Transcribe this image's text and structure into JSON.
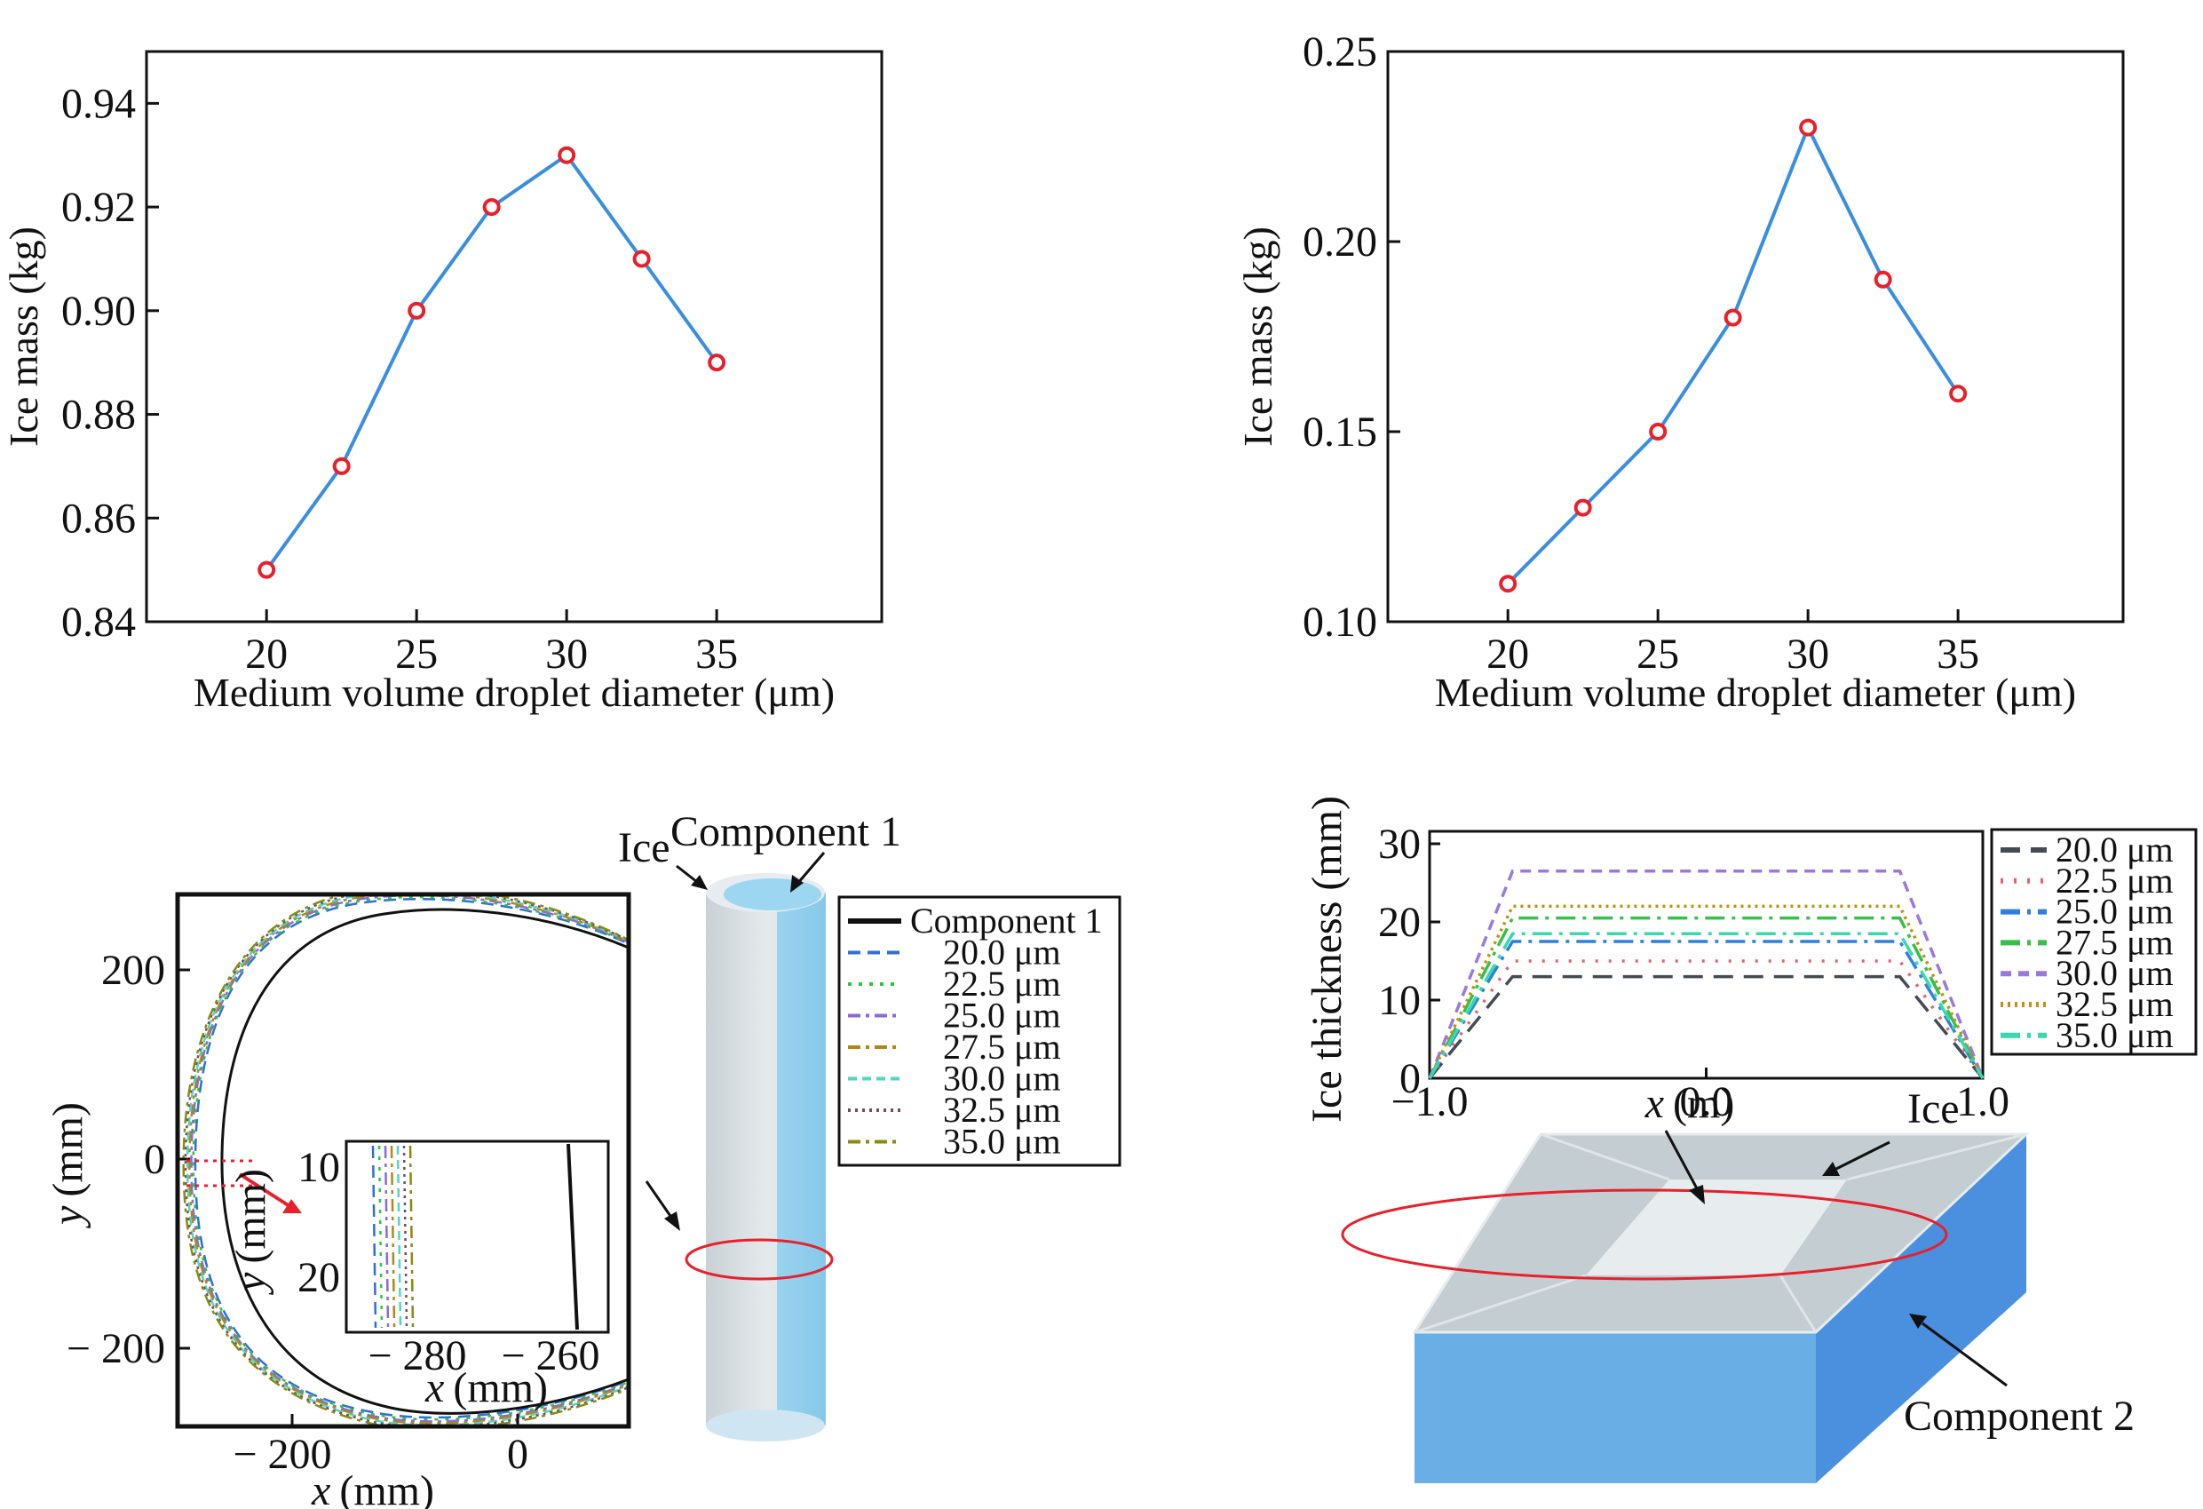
{
  "chart_data": [
    {
      "id": "top-left",
      "type": "line",
      "xlabel": "Medium volume droplet diameter (μm)",
      "ylabel": "Ice mass (kg)",
      "xlim": [
        16,
        40.5
      ],
      "ylim": [
        0.84,
        0.95
      ],
      "xticks": [
        20,
        25,
        30,
        35
      ],
      "yticks": [
        0.84,
        0.86,
        0.88,
        0.9,
        0.92,
        0.94
      ],
      "ytick_labels": [
        "0.84",
        "0.86",
        "0.88",
        "0.90",
        "0.92",
        "0.94"
      ],
      "series": [
        {
          "x": [
            20,
            22.5,
            25,
            27.5,
            30,
            32.5,
            35
          ],
          "values": [
            0.85,
            0.87,
            0.9,
            0.92,
            0.93,
            0.91,
            0.89
          ]
        }
      ],
      "line_color": "#3a8ee0",
      "marker_color": "#e8202a",
      "grid": false
    },
    {
      "id": "top-right",
      "type": "line",
      "xlabel": "Medium volume droplet diameter (μm)",
      "ylabel": "Ice mass (kg)",
      "xlim": [
        16,
        40.5
      ],
      "ylim": [
        0.1,
        0.25
      ],
      "xticks": [
        20,
        25,
        30,
        35
      ],
      "yticks": [
        0.1,
        0.15,
        0.2,
        0.25
      ],
      "ytick_labels": [
        "0.10",
        "0.15",
        "0.20",
        "0.25"
      ],
      "series": [
        {
          "x": [
            20,
            22.5,
            25,
            27.5,
            30,
            32.5,
            35
          ],
          "values": [
            0.11,
            0.13,
            0.15,
            0.18,
            0.23,
            0.19,
            0.16
          ]
        }
      ],
      "line_color": "#3a8ee0",
      "marker_color": "#e8202a",
      "grid": false
    },
    {
      "id": "bottom-left",
      "type": "line",
      "xlabel": "x (mm)",
      "ylabel": "y (mm)",
      "xlabel_var": "x",
      "xlabel_unit": "(mm)",
      "ylabel_var": "y",
      "ylabel_unit": "(mm)",
      "xticks": [
        -200,
        0
      ],
      "xtick_labels": [
        "− 200",
        "0"
      ],
      "yticks": [
        200,
        0,
        -200
      ],
      "ytick_labels": [
        "200",
        "0",
        "− 200"
      ],
      "legend": [
        "Component 1",
        "20.0 μm",
        "22.5 μm",
        "25.0 μm",
        "27.5 μm",
        "30.0 μm",
        "32.5 μm",
        "35.0 μm"
      ],
      "legend_colors": [
        "#111111",
        "#2f6fd6",
        "#29c93a",
        "#8a6ad8",
        "#b08a10",
        "#4fd6c8",
        "#7a4a5a",
        "#8a8a10"
      ],
      "legend_dashes": [
        "",
        "14 8",
        "4 8",
        "14 6 4 6",
        "14 6 4 6",
        "10 6",
        "3 5",
        "14 6 4 6"
      ],
      "inset": {
        "xticks": [
          "− 280",
          "− 260"
        ],
        "yticks": [
          "10",
          "20"
        ],
        "xlabel_var": "x",
        "xlabel_unit": "(mm)",
        "ylabel_var": "y",
        "ylabel_unit": "(mm)"
      },
      "illustration_labels": {
        "ice": "Ice",
        "component": "Component 1"
      }
    },
    {
      "id": "bottom-right",
      "type": "line",
      "xlabel": "x (m)",
      "ylabel": "Ice thickness (mm)",
      "xlabel_var": "x",
      "xlabel_unit": "(m)",
      "xlim": [
        -1.0,
        1.0
      ],
      "ylim": [
        0,
        30
      ],
      "xticks": [
        -1.0,
        0.0,
        1.0
      ],
      "xtick_labels": [
        "−1.0",
        "0.0",
        "1.0"
      ],
      "yticks": [
        0,
        10,
        20,
        30
      ],
      "ytick_labels": [
        "0",
        "10",
        "20",
        "30"
      ],
      "legend": [
        "20.0 μm",
        "22.5 μm",
        "25.0 μm",
        "27.5 μm",
        "30.0 μm",
        "32.5 μm",
        "35.0 μm"
      ],
      "series": [
        {
          "name": "20.0 μm",
          "plateau": 13,
          "color": "#444b55",
          "dash": "22 12"
        },
        {
          "name": "22.5 μm",
          "plateau": 15,
          "color": "#e8606a",
          "dash": "3 12"
        },
        {
          "name": "25.0 μm",
          "plateau": 17.5,
          "color": "#2f7fe0",
          "dash": "22 8 4 8"
        },
        {
          "name": "27.5 μm",
          "plateau": 20.5,
          "color": "#35c04a",
          "dash": "22 8 4 8"
        },
        {
          "name": "30.0 μm",
          "plateau": 26.5,
          "color": "#9a78e0",
          "dash": "12 8"
        },
        {
          "name": "32.5 μm",
          "plateau": 22,
          "color": "#c09010",
          "dash": "3 5"
        },
        {
          "name": "35.0 μm",
          "plateau": 18.5,
          "color": "#38d8b0",
          "dash": "22 8 4 8"
        }
      ],
      "plateau_x": [
        -0.7,
        0.7
      ],
      "illustration_labels": {
        "ice": "Ice",
        "component": "Component 2"
      }
    }
  ]
}
